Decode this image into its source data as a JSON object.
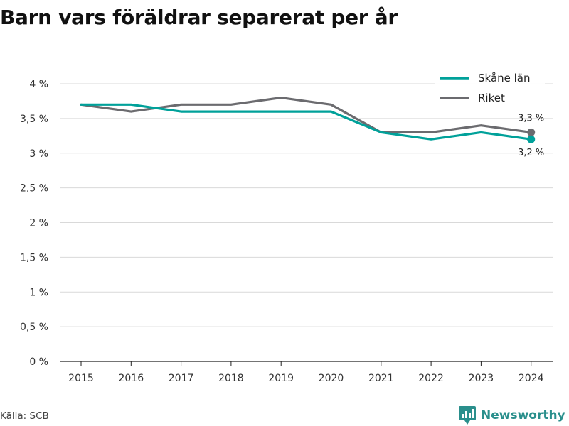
{
  "chart_data": {
    "type": "line",
    "title": "Barn vars föräldrar separerat per år",
    "xlabel": "",
    "ylabel": "",
    "x": [
      "2015",
      "2016",
      "2017",
      "2018",
      "2019",
      "2020",
      "2021",
      "2022",
      "2023",
      "2024"
    ],
    "ylim": [
      0,
      4
    ],
    "yticks": [
      0,
      0.5,
      1,
      1.5,
      2,
      2.5,
      3,
      3.5,
      4
    ],
    "ytick_labels": [
      "0 %",
      "0,5 %",
      "1 %",
      "1,5 %",
      "2 %",
      "2,5 %",
      "3 %",
      "3,5 %",
      "4 %"
    ],
    "grid": true,
    "legend_position": "top-right",
    "series": [
      {
        "name": "Skåne län",
        "color": "#00a19a",
        "values": [
          3.7,
          3.7,
          3.6,
          3.6,
          3.6,
          3.6,
          3.3,
          3.2,
          3.3,
          3.2
        ],
        "end_label": "3,2 %"
      },
      {
        "name": "Riket",
        "color": "#6b6b6f",
        "values": [
          3.7,
          3.6,
          3.7,
          3.7,
          3.8,
          3.7,
          3.3,
          3.3,
          3.4,
          3.3
        ],
        "end_label": "3,3 %"
      }
    ]
  },
  "source": "Källa: SCB",
  "brand": {
    "name": "Newsworthy",
    "icon": "newsworthy-logo-icon",
    "color": "#2a8f8c"
  }
}
